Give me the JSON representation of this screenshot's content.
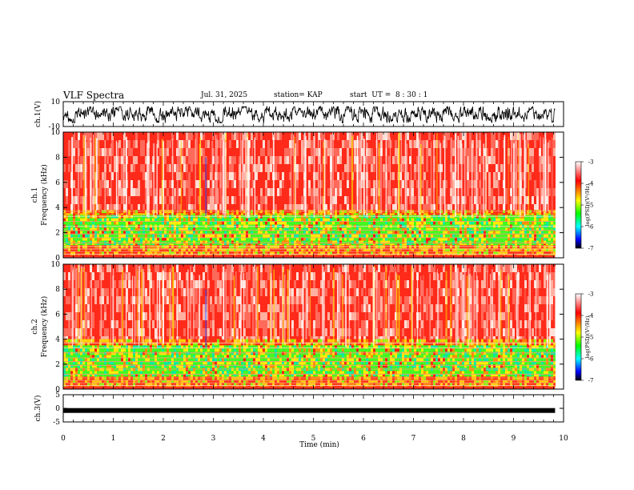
{
  "header": {
    "title": "VLF Spectra",
    "date": "Jul. 31, 2025",
    "station": "station= KAP",
    "start": "start  UT =  8 : 30 : 1"
  },
  "chart_data": [
    {
      "type": "line",
      "panel": "ch1-waveform",
      "ylabel": "ch.1(V)",
      "ylim": [
        -10,
        10
      ],
      "yticks": [
        "10",
        "-10"
      ],
      "xlim": [
        0,
        10
      ],
      "data_extent_min": 9.83,
      "approx_range": [
        -7,
        6
      ]
    },
    {
      "type": "heatmap",
      "panel": "ch1-spectrogram",
      "ylabel_lines": [
        "ch.1",
        "Frequency  (kHz)"
      ],
      "ylim": [
        0,
        10
      ],
      "yticks": [
        "0",
        "2",
        "4",
        "6",
        "8",
        "10"
      ],
      "xlim": [
        0,
        10
      ],
      "bands": [
        {
          "from": 3.8,
          "to": 10,
          "level": "high"
        },
        {
          "from": 3.4,
          "to": 3.8,
          "level": "mid"
        },
        {
          "from": 1.0,
          "to": 3.4,
          "level": "low"
        },
        {
          "from": 0.2,
          "to": 1.0,
          "level": "mid"
        }
      ]
    },
    {
      "type": "heatmap",
      "panel": "ch2-spectrogram",
      "ylabel_lines": [
        "ch.2",
        "Frequency  (kHz)"
      ],
      "ylim": [
        0,
        10
      ],
      "yticks": [
        "0",
        "2",
        "4",
        "6",
        "8",
        "10"
      ],
      "xlim": [
        0,
        10
      ],
      "bands": [
        {
          "from": 4.0,
          "to": 10,
          "level": "high"
        },
        {
          "from": 3.5,
          "to": 4.0,
          "level": "mid"
        },
        {
          "from": 1.0,
          "to": 3.5,
          "level": "low"
        },
        {
          "from": 0.2,
          "to": 1.0,
          "level": "mid"
        }
      ]
    },
    {
      "type": "line",
      "panel": "ch3-waveform",
      "ylabel": "ch.3(V)",
      "ylim": [
        -5,
        5
      ],
      "yticks": [
        "5",
        "0",
        "-5"
      ],
      "xlim": [
        0,
        10
      ],
      "level": -0.8
    }
  ],
  "xaxis": {
    "label": "Time  (min)",
    "ticks": [
      "0",
      "1",
      "2",
      "3",
      "4",
      "5",
      "6",
      "7",
      "8",
      "9",
      "10"
    ]
  },
  "colorbar": {
    "label": "log(PSD)(V²/Hz)",
    "ticks": [
      "-3",
      "-4",
      "-5",
      "-6",
      "-7"
    ],
    "colors": [
      "#ffffff",
      "#ff0000",
      "#ffff00",
      "#00ff00",
      "#00ffff",
      "#0000ff",
      "#000000"
    ]
  }
}
